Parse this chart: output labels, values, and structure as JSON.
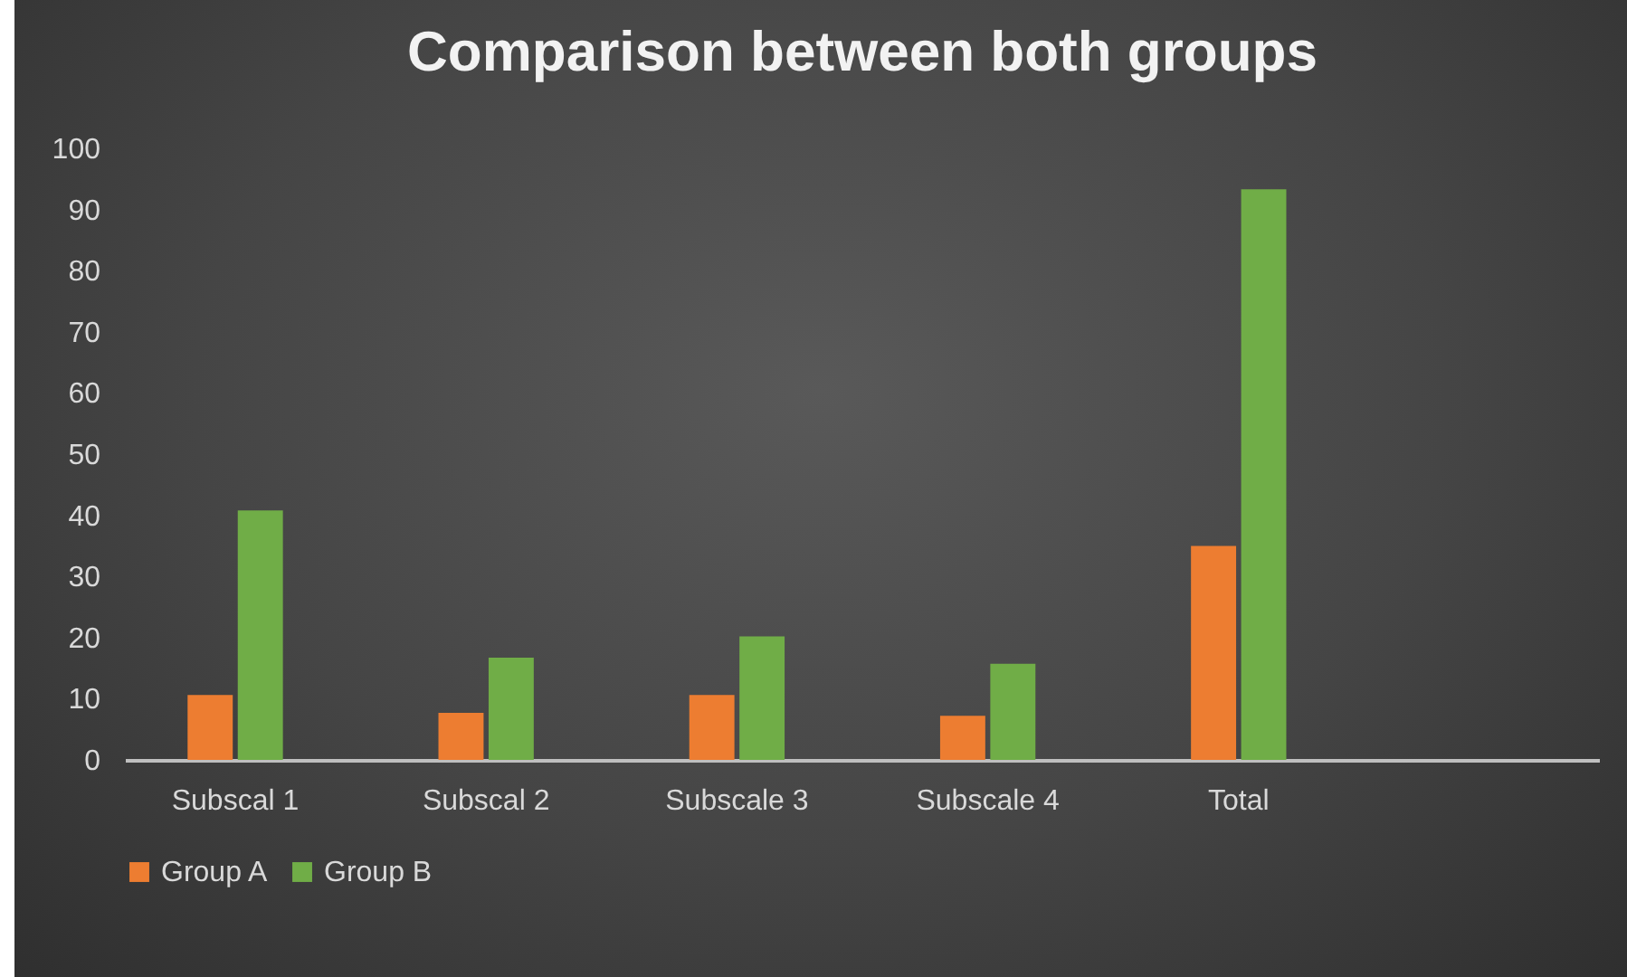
{
  "chart_data": {
    "type": "bar",
    "title": "Comparison between both groups",
    "categories": [
      "Subscal 1",
      "Subscal 2",
      "Subscale 3",
      "Subscale 4",
      "Total",
      null
    ],
    "series": [
      {
        "name": "Group A",
        "color": "#ed7d31",
        "values": [
          10.6,
          7.7,
          10.6,
          7.2,
          35.0,
          null
        ]
      },
      {
        "name": "Group B",
        "color": "#70ad47",
        "values": [
          40.8,
          16.7,
          20.2,
          15.7,
          93.3,
          null
        ]
      }
    ],
    "ylim": [
      0,
      100
    ],
    "yticks": [
      0,
      10,
      20,
      30,
      40,
      50,
      60,
      70,
      80,
      90,
      100
    ],
    "grid": false,
    "legend": "bottom"
  }
}
